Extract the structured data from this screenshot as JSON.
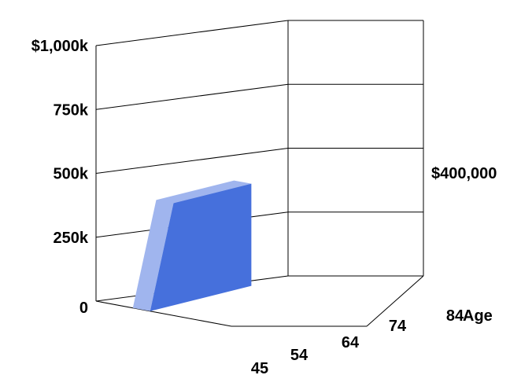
{
  "chart_data": {
    "type": "area",
    "projection": "3d",
    "x_categories": [
      "45",
      "54",
      "64",
      "74",
      "84"
    ],
    "x_axis_suffix": "Age",
    "ytick_labels": [
      "0",
      "250k",
      "500k",
      "750k",
      "$1,000k"
    ],
    "ylim": [
      0,
      1000000
    ],
    "yticks": [
      0,
      250000,
      500000,
      750000,
      1000000
    ],
    "grid": true,
    "annotation": {
      "text": "$400,000",
      "position": "right"
    },
    "series": [
      {
        "color": "#4670dc",
        "top_color": "#a0b5ee",
        "points": [
          {
            "x": 45,
            "y": 0
          },
          {
            "x": 54,
            "y": 400000
          },
          {
            "x": 84,
            "y": 400000
          }
        ]
      }
    ]
  },
  "colors": {
    "area_front": "#4670dc",
    "area_top": "#a0b5ee",
    "grid": "#000000"
  }
}
